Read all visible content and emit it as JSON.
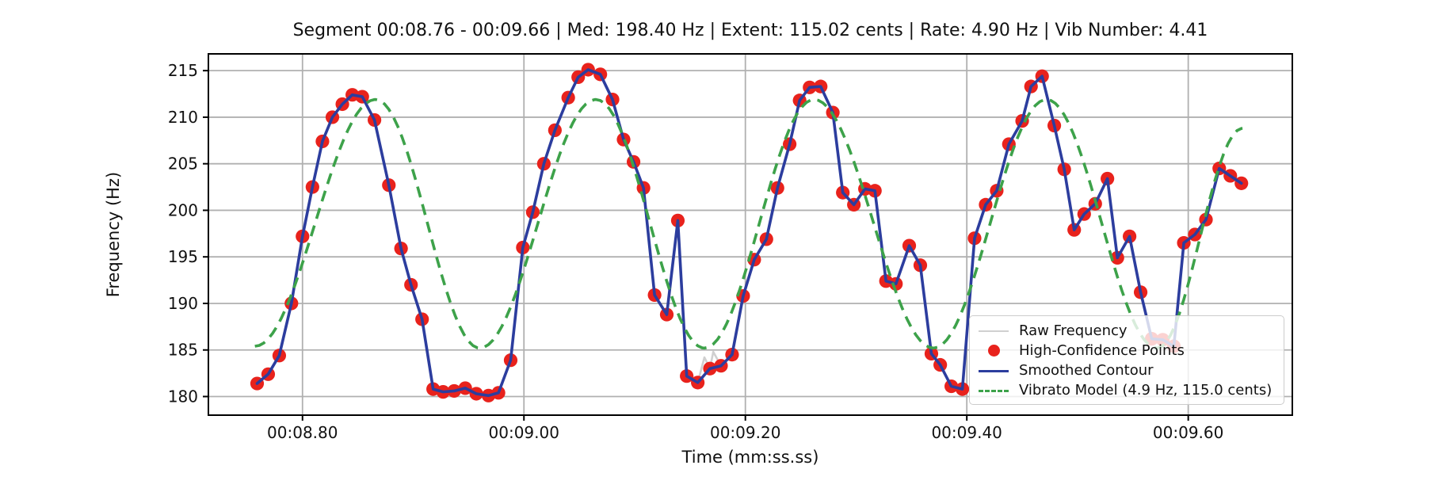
{
  "figure": {
    "kind": "matplotlib-style vibrato analysis plot"
  },
  "legend": {
    "items": [
      {
        "label": "Raw Frequency",
        "glyph": "line",
        "color": "#d0d0d0"
      },
      {
        "label": "High-Confidence Points",
        "glyph": "marker",
        "color": "#e8221c"
      },
      {
        "label": "Smoothed Contour",
        "glyph": "line",
        "color": "#2c3d9e"
      },
      {
        "label": "Vibrato Model (4.9 Hz, 115.0 cents)",
        "glyph": "dashed-line",
        "color": "#3da24a"
      }
    ]
  },
  "chart_data": {
    "type": "line",
    "title": "Segment 00:08.76 - 00:09.66 | Med: 198.40 Hz | Extent: 115.02 cents | Rate: 4.90 Hz | Vib Number: 4.41",
    "xlabel": "Time (mm:ss.ss)",
    "ylabel": "Frequency (Hz)",
    "metrics": {
      "segment_start": "00:08.76",
      "segment_end": "00:09.66",
      "median_hz": 198.4,
      "extent_cents": 115.02,
      "rate_hz": 4.9,
      "vib_number": 4.41
    },
    "grid": true,
    "legend_position": "lower right",
    "xlim_seconds": [
      8.715,
      9.694
    ],
    "ylim": [
      178.0,
      216.8
    ],
    "x_ticks": [
      {
        "value": 8.8,
        "label": "00:08.80"
      },
      {
        "value": 9.0,
        "label": "00:09.00"
      },
      {
        "value": 9.2,
        "label": "00:09.20"
      },
      {
        "value": 9.4,
        "label": "00:09.40"
      },
      {
        "value": 9.6,
        "label": "00:09.60"
      }
    ],
    "y_ticks": [
      180,
      185,
      190,
      195,
      200,
      205,
      210,
      215
    ],
    "colors": {
      "raw": "#d0d0d0",
      "points": "#e8221c",
      "smoothed": "#2c3d9e",
      "model": "#3da24a",
      "grid": "#b0b0b0",
      "spine": "#000000"
    },
    "series": [
      {
        "name": "High-Confidence Points",
        "role": "points",
        "points": [
          [
            8.759,
            181.4
          ],
          [
            8.769,
            182.4
          ],
          [
            8.779,
            184.4
          ],
          [
            8.79,
            190.0
          ],
          [
            8.8,
            197.2
          ],
          [
            8.809,
            202.5
          ],
          [
            8.818,
            207.4
          ],
          [
            8.827,
            210.0
          ],
          [
            8.836,
            211.4
          ],
          [
            8.845,
            212.4
          ],
          [
            8.854,
            212.2
          ],
          [
            8.865,
            209.7
          ],
          [
            8.878,
            202.7
          ],
          [
            8.889,
            195.9
          ],
          [
            8.898,
            192.0
          ],
          [
            8.908,
            188.3
          ],
          [
            8.918,
            180.8
          ],
          [
            8.927,
            180.5
          ],
          [
            8.937,
            180.6
          ],
          [
            8.947,
            180.9
          ],
          [
            8.957,
            180.3
          ],
          [
            8.968,
            180.1
          ],
          [
            8.977,
            180.4
          ],
          [
            8.988,
            183.9
          ],
          [
            8.999,
            196.0
          ],
          [
            9.008,
            199.8
          ],
          [
            9.018,
            205.0
          ],
          [
            9.028,
            208.6
          ],
          [
            9.04,
            212.1
          ],
          [
            9.049,
            214.3
          ],
          [
            9.058,
            215.1
          ],
          [
            9.069,
            214.6
          ],
          [
            9.08,
            211.9
          ],
          [
            9.09,
            207.6
          ],
          [
            9.099,
            205.2
          ],
          [
            9.108,
            202.4
          ],
          [
            9.118,
            190.9
          ],
          [
            9.129,
            188.8
          ],
          [
            9.139,
            198.9
          ],
          [
            9.147,
            182.2
          ],
          [
            9.157,
            181.5
          ],
          [
            9.168,
            183.0
          ],
          [
            9.178,
            183.3
          ],
          [
            9.188,
            184.5
          ],
          [
            9.198,
            190.8
          ],
          [
            9.208,
            194.7
          ],
          [
            9.219,
            196.9
          ],
          [
            9.229,
            202.4
          ],
          [
            9.24,
            207.1
          ],
          [
            9.249,
            211.8
          ],
          [
            9.258,
            213.2
          ],
          [
            9.268,
            213.3
          ],
          [
            9.279,
            210.5
          ],
          [
            9.288,
            201.9
          ],
          [
            9.298,
            200.6
          ],
          [
            9.308,
            202.3
          ],
          [
            9.317,
            202.1
          ],
          [
            9.327,
            192.4
          ],
          [
            9.336,
            192.1
          ],
          [
            9.348,
            196.2
          ],
          [
            9.358,
            194.1
          ],
          [
            9.368,
            184.6
          ],
          [
            9.376,
            183.4
          ],
          [
            9.386,
            181.1
          ],
          [
            9.396,
            180.8
          ],
          [
            9.407,
            197.0
          ],
          [
            9.417,
            200.6
          ],
          [
            9.427,
            202.1
          ],
          [
            9.438,
            207.1
          ],
          [
            9.45,
            209.6
          ],
          [
            9.458,
            213.3
          ],
          [
            9.468,
            214.4
          ],
          [
            9.479,
            209.1
          ],
          [
            9.488,
            204.4
          ],
          [
            9.497,
            197.9
          ],
          [
            9.506,
            199.6
          ],
          [
            9.516,
            200.7
          ],
          [
            9.527,
            203.4
          ],
          [
            9.536,
            194.9
          ],
          [
            9.547,
            197.2
          ],
          [
            9.557,
            191.2
          ],
          [
            9.567,
            186.2
          ],
          [
            9.577,
            186.1
          ],
          [
            9.587,
            185.4
          ],
          [
            9.596,
            196.5
          ],
          [
            9.606,
            197.4
          ],
          [
            9.616,
            199.0
          ],
          [
            9.628,
            204.5
          ],
          [
            9.638,
            203.7
          ],
          [
            9.648,
            202.9
          ]
        ]
      },
      {
        "name": "Smoothed Contour",
        "role": "smoothed",
        "follows": "High-Confidence Points"
      },
      {
        "name": "Raw Frequency",
        "role": "raw",
        "follows": "High-Confidence Points",
        "extra_points": [
          [
            9.163,
            184.2
          ],
          [
            9.171,
            184.8
          ]
        ]
      },
      {
        "name": "Vibrato Model (4.9 Hz, 115.0 cents)",
        "role": "model",
        "rate_hz": 4.9,
        "extent_cents": 115.0,
        "median_hz": 198.4,
        "anchor_points": [
          [
            8.757,
            185.4
          ],
          [
            8.866,
            211.9
          ],
          [
            8.96,
            185.2
          ],
          [
            9.065,
            211.9
          ],
          [
            9.163,
            185.2
          ],
          [
            9.262,
            211.9
          ],
          [
            9.37,
            185.2
          ],
          [
            9.472,
            211.9
          ],
          [
            9.572,
            185.2
          ],
          [
            9.649,
            208.8
          ]
        ]
      }
    ]
  }
}
